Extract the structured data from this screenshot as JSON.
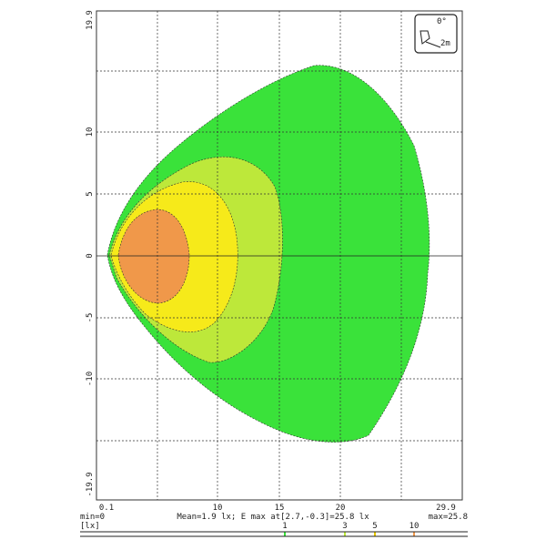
{
  "y_ticks": [
    "19.9",
    "10",
    "5",
    "0",
    "-5",
    "-10",
    "-19.9"
  ],
  "x_ticks": [
    "0.1",
    "10",
    "15",
    "20",
    "29.9"
  ],
  "icon": {
    "angle": "0°",
    "height": "2m"
  },
  "footer": {
    "min": "min=0",
    "summary": "Mean=1.9 lx; E max at[2.7,-0.3]=25.8 lx",
    "max": "max=25.8"
  },
  "legend": {
    "unit": "[lx]",
    "levels": [
      "1",
      "3",
      "5",
      "10"
    ]
  }
}
